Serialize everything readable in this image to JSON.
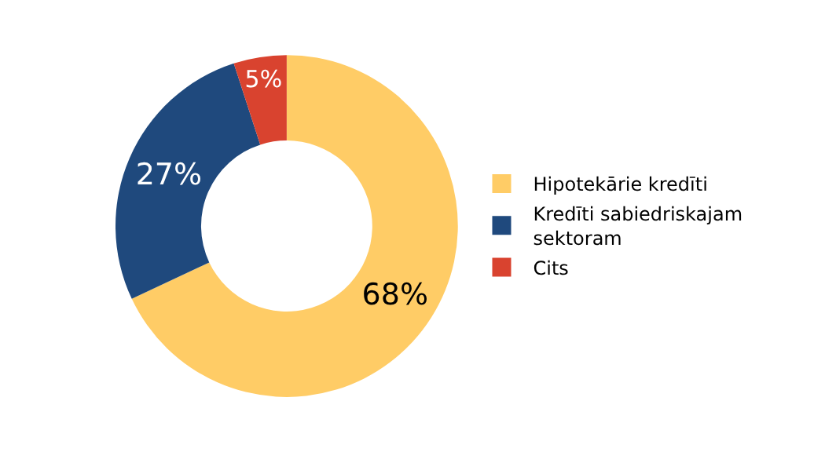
{
  "chart_data": {
    "type": "donut",
    "categories": [
      "Hipotekārie kredīti",
      "Kredīti sabiedriskajam sektoram",
      "Cits"
    ],
    "values": [
      68,
      27,
      5
    ],
    "colors": [
      "#ffcc66",
      "#1f497d",
      "#d9432f"
    ],
    "value_labels": [
      "68%",
      "27%",
      "5%"
    ],
    "legend": "right"
  }
}
